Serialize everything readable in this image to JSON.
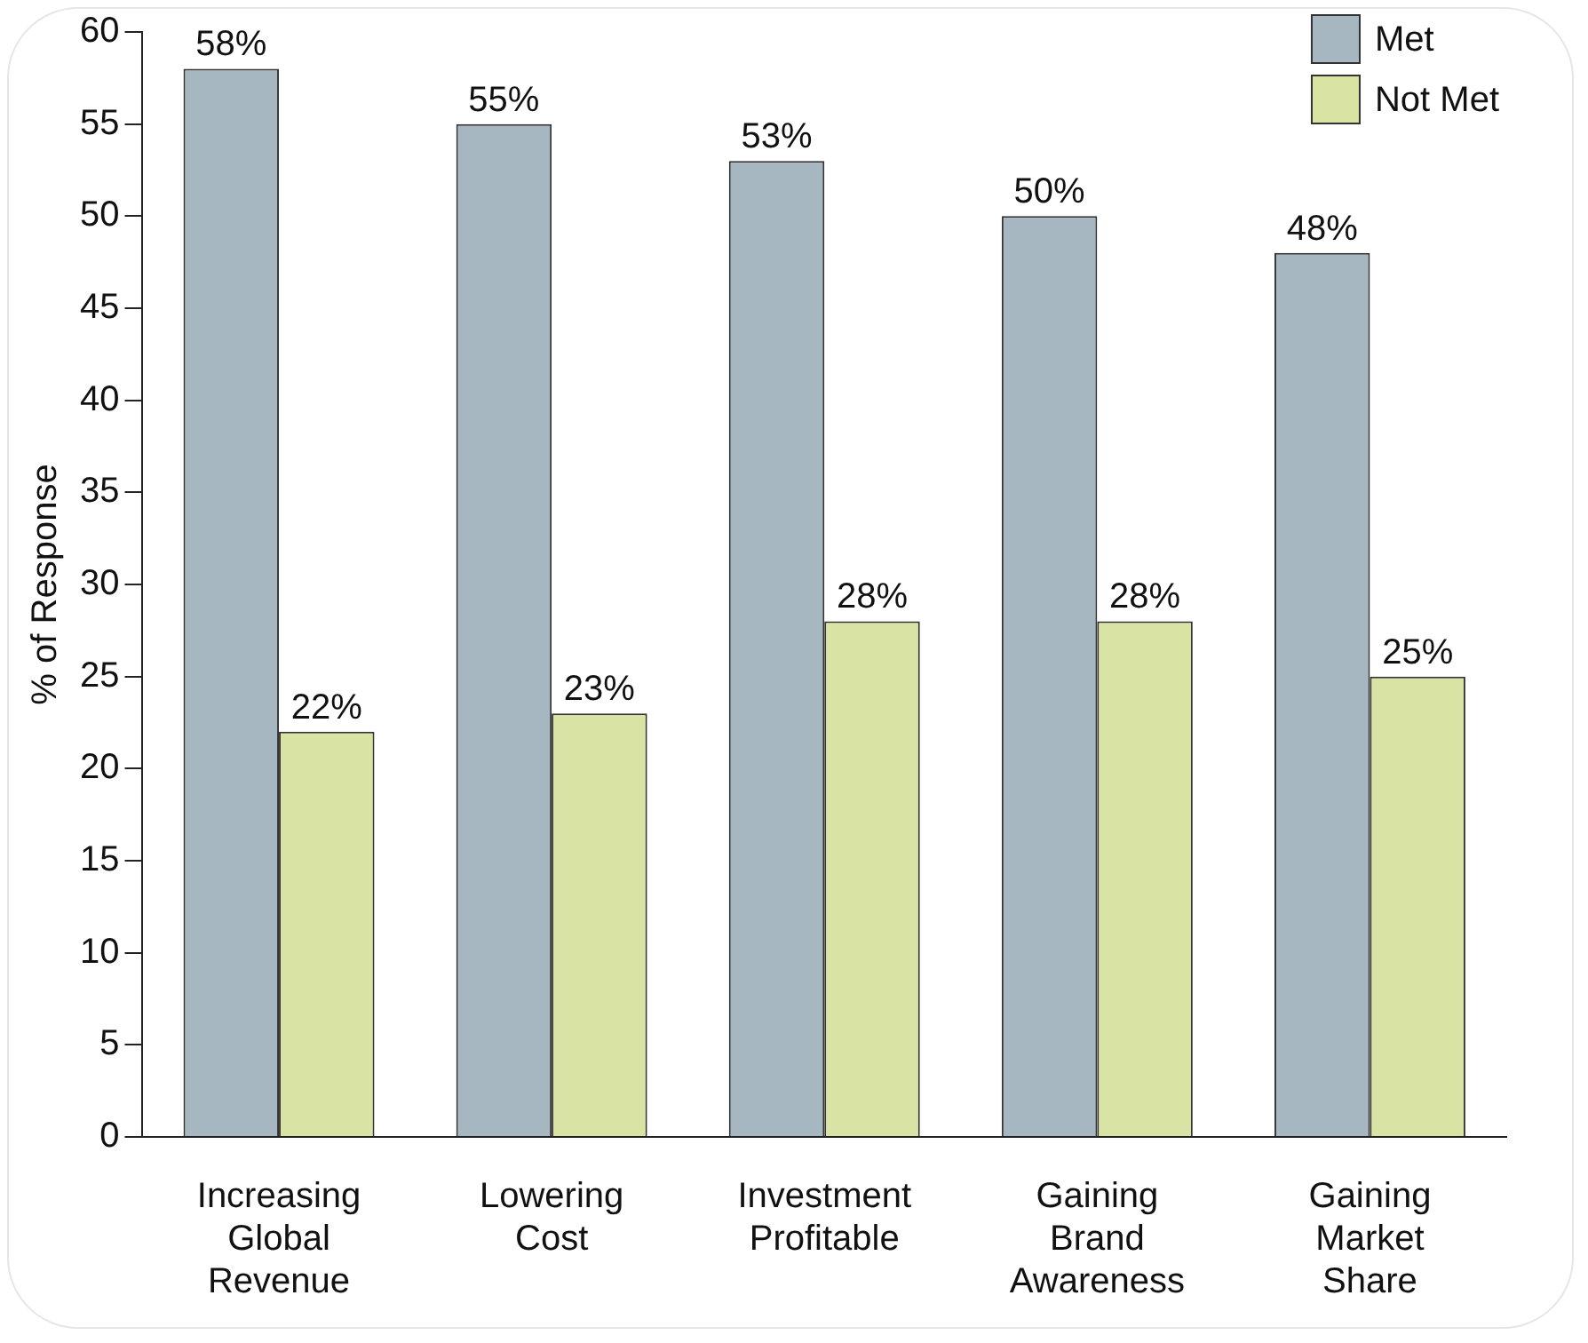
{
  "chart_data": {
    "type": "bar",
    "ylabel": "% of Response",
    "categories": [
      "Increasing Global Revenue",
      "Lowering Cost",
      "Investment Profitable",
      "Gaining Brand Awareness",
      "Gaining Market Share"
    ],
    "series": [
      {
        "name": "Met",
        "color": "#a7b7c1",
        "values": [
          58,
          55,
          53,
          50,
          48
        ],
        "value_labels": [
          "58%",
          "55%",
          "53%",
          "50%",
          "48%"
        ]
      },
      {
        "name": "Not Met",
        "color": "#d9e3a3",
        "values": [
          22,
          23,
          28,
          28,
          25
        ],
        "value_labels": [
          "22%",
          "23%",
          "28%",
          "28%",
          "25%"
        ]
      }
    ],
    "ylim": [
      0,
      60
    ],
    "yticks": [
      0,
      5,
      10,
      15,
      20,
      25,
      30,
      35,
      40,
      45,
      50,
      55,
      60
    ],
    "grid": false,
    "legend": "top right"
  }
}
